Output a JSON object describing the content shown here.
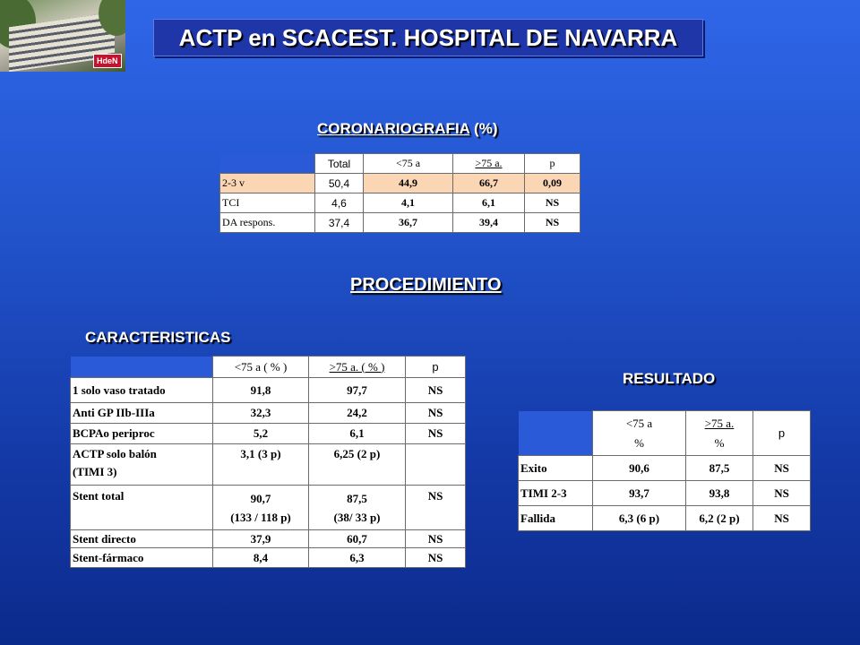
{
  "logo": {
    "badge": "HdeN"
  },
  "title": "ACTP en SCACEST. HOSPITAL DE NAVARRA",
  "coronariografia": {
    "heading_main": "CORONARIOGRAFIA",
    "heading_unit": "(%)",
    "headers": [
      "",
      "Total",
      "<75 a",
      ">75 a.",
      "p"
    ],
    "rows": [
      {
        "label": "2-3 v",
        "total": "50,4",
        "lt75": "44,9",
        "gt75": "66,7",
        "p": "0,09"
      },
      {
        "label": "TCI",
        "total": "4,6",
        "lt75": "4,1",
        "gt75": "6,1",
        "p": "NS"
      },
      {
        "label": "DA respons.",
        "total": "37,4",
        "lt75": "36,7",
        "gt75": "39,4",
        "p": "NS"
      }
    ]
  },
  "procedimiento": {
    "heading": "PROCEDIMIENTO"
  },
  "caracteristicas": {
    "heading": "CARACTERISTICAS",
    "headers": [
      "",
      "<75 a ( % )",
      ">75 a. ( % )",
      "p"
    ],
    "rows": [
      {
        "label": "1 solo vaso tratado",
        "lt75": "91,8",
        "gt75": "97,7",
        "p": "NS"
      },
      {
        "label": "Anti GP IIb-IIIa",
        "lt75": "32,3",
        "gt75": "24,2",
        "p": "NS"
      },
      {
        "label": "BCPAo periproc",
        "lt75": "5,2",
        "gt75": "6,1",
        "p": "NS"
      },
      {
        "label": "ACTP solo balón",
        "label2": "(TIMI 3)",
        "lt75": "3,1 (3 p)",
        "gt75": "6,25 (2 p)",
        "p": ""
      },
      {
        "label": "Stent total",
        "lt75": "90,7",
        "lt75b": "(133 / 118 p)",
        "gt75": "87,5",
        "gt75b": "(38/ 33 p)",
        "p": "NS"
      },
      {
        "label": "Stent directo",
        "lt75": "37,9",
        "gt75": "60,7",
        "p": "NS"
      },
      {
        "label": "Stent-fármaco",
        "lt75": "8,4",
        "gt75": "6,3",
        "p": "NS"
      }
    ]
  },
  "resultado": {
    "heading": "RESULTADO",
    "headers": {
      "lt75": "<75 a",
      "lt75_unit": "%",
      "gt75": ">75 a.",
      "gt75_unit": "%",
      "p": "p"
    },
    "rows": [
      {
        "label": "Exito",
        "lt75": "90,6",
        "gt75": "87,5",
        "p": "NS"
      },
      {
        "label": "TIMI 2-3",
        "lt75": "93,7",
        "gt75": "93,8",
        "p": "NS"
      },
      {
        "label": "Fallida",
        "lt75": "6,3 (6 p)",
        "gt75": "6,2 (2 p)",
        "p": "NS"
      }
    ]
  }
}
